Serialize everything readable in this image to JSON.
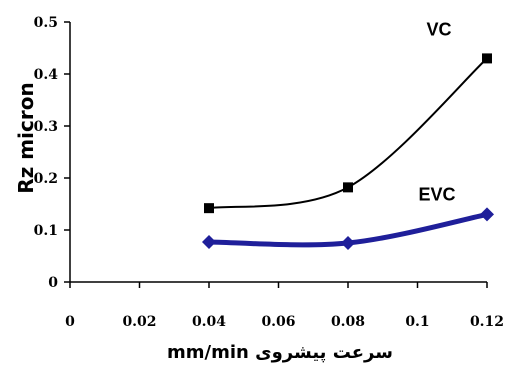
{
  "chart_data": {
    "type": "line",
    "title": "",
    "xlabel": "سرعت پیشروی mm/min",
    "ylabel": "Rz micron",
    "xlim": [
      0,
      0.12
    ],
    "ylim": [
      0,
      0.5
    ],
    "x_ticks": [
      "0",
      "0.02",
      "0.04",
      "0.06",
      "0.08",
      "0.1",
      "0.12"
    ],
    "y_ticks": [
      "0",
      "0.1",
      "0.2",
      "0.3",
      "0.4",
      "0.5"
    ],
    "grid": false,
    "legend": "none (series labelled directly on plot)",
    "series": [
      {
        "name": "VC",
        "x": [
          0.04,
          0.08,
          0.12
        ],
        "values": [
          0.142,
          0.182,
          0.43
        ],
        "color": "#000000",
        "marker": "square"
      },
      {
        "name": "EVC",
        "x": [
          0.04,
          0.08,
          0.12
        ],
        "values": [
          0.077,
          0.075,
          0.13
        ],
        "color": "#1f1f9a",
        "marker": "diamond"
      }
    ]
  }
}
